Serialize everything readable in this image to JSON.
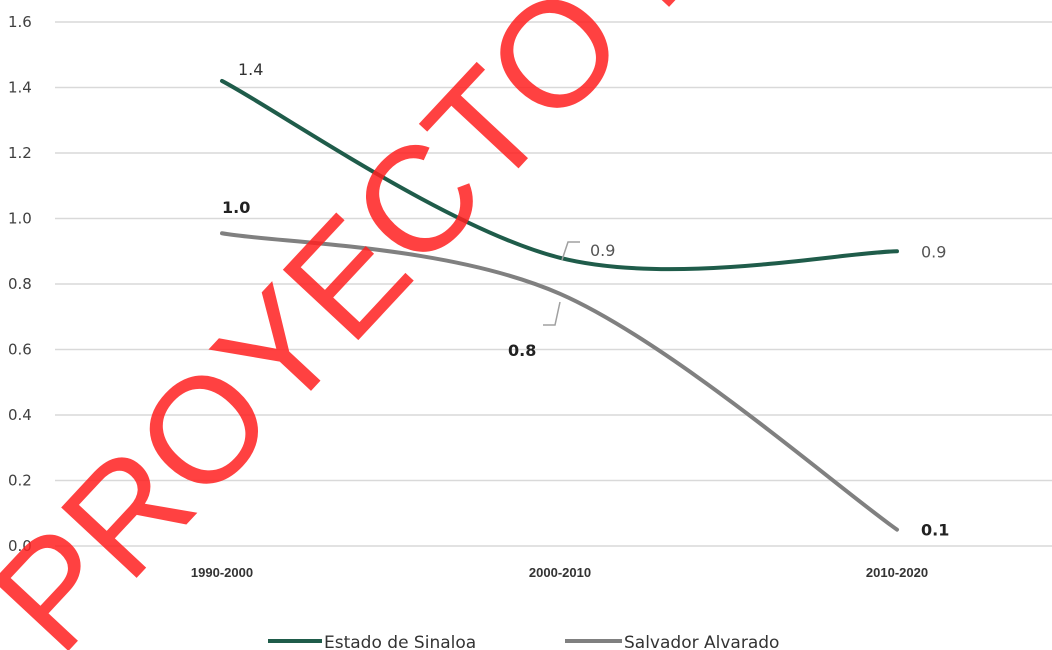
{
  "chart_data": {
    "type": "line",
    "categories": [
      "1990-2000",
      "2000-2010",
      "2010-2020"
    ],
    "ylim": [
      0.0,
      1.6
    ],
    "yticks": [
      "0.0",
      "0.2",
      "0.4",
      "0.6",
      "0.8",
      "1.0",
      "1.2",
      "1.4",
      "1.6"
    ],
    "grid": true,
    "legend_position": "bottom",
    "series": [
      {
        "name": "Estado de Sinaloa",
        "color": "#1f5c4a",
        "values": [
          1.42,
          0.88,
          0.9
        ],
        "labels": [
          "1.4",
          "0.9",
          "0.9"
        ]
      },
      {
        "name": "Salvador Alvarado",
        "color": "#808080",
        "values": [
          0.955,
          0.77,
          0.05
        ],
        "labels": [
          "1.0",
          "0.8",
          "0.1"
        ]
      }
    ],
    "watermark": "PROYECTO EN CONSULTA"
  }
}
